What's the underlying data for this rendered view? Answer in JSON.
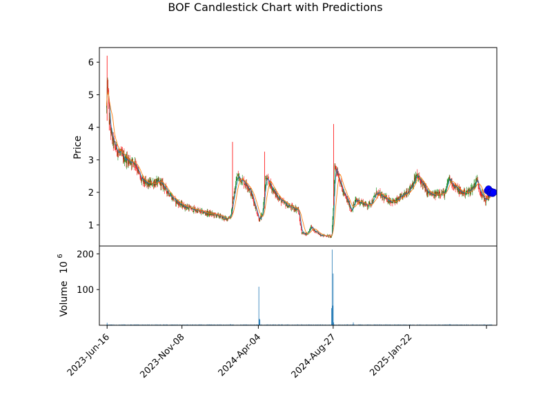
{
  "chart_data": {
    "type": "candlestick",
    "title": "BOF Candlestick Chart with Predictions",
    "price_panel": {
      "ylabel": "Price",
      "ylim": [
        0.35,
        6.45
      ],
      "yticks": [
        1,
        2,
        3,
        4,
        5,
        6
      ],
      "colors": {
        "up": "#008000",
        "down": "#ff0000",
        "ma_short": "#1f77b4",
        "ma_long": "#ff7f0e",
        "prediction": "#0000ff"
      },
      "price_path": [
        [
          "2023-06-15",
          4.6
        ],
        [
          "2023-06-17",
          5.4
        ],
        [
          "2023-06-20",
          4.2
        ],
        [
          "2023-06-25",
          3.7
        ],
        [
          "2023-07-01",
          3.4
        ],
        [
          "2023-07-10",
          3.2
        ],
        [
          "2023-07-20",
          3.05
        ],
        [
          "2023-08-01",
          2.95
        ],
        [
          "2023-08-10",
          2.9
        ],
        [
          "2023-08-20",
          2.4
        ],
        [
          "2023-09-01",
          2.25
        ],
        [
          "2023-09-15",
          2.3
        ],
        [
          "2023-09-28",
          2.3
        ],
        [
          "2023-10-10",
          2.05
        ],
        [
          "2023-10-25",
          1.75
        ],
        [
          "2023-11-08",
          1.6
        ],
        [
          "2023-11-25",
          1.5
        ],
        [
          "2023-12-15",
          1.4
        ],
        [
          "2024-01-05",
          1.33
        ],
        [
          "2024-01-20",
          1.27
        ],
        [
          "2024-02-01",
          1.18
        ],
        [
          "2024-02-10",
          1.25
        ],
        [
          "2024-02-17",
          1.95
        ],
        [
          "2024-02-23",
          2.5
        ],
        [
          "2024-03-05",
          2.35
        ],
        [
          "2024-03-15",
          2.2
        ],
        [
          "2024-03-25",
          1.8
        ],
        [
          "2024-04-01",
          1.4
        ],
        [
          "2024-04-06",
          1.15
        ],
        [
          "2024-04-12",
          1.3
        ],
        [
          "2024-04-18",
          2.4
        ],
        [
          "2024-04-25",
          2.3
        ],
        [
          "2024-05-05",
          2.0
        ],
        [
          "2024-05-20",
          1.7
        ],
        [
          "2024-06-05",
          1.55
        ],
        [
          "2024-06-20",
          1.48
        ],
        [
          "2024-06-27",
          0.75
        ],
        [
          "2024-07-08",
          0.72
        ],
        [
          "2024-07-15",
          0.95
        ],
        [
          "2024-07-22",
          0.8
        ],
        [
          "2024-08-05",
          0.68
        ],
        [
          "2024-08-24",
          0.65
        ],
        [
          "2024-08-27",
          1.5
        ],
        [
          "2024-08-30",
          2.8
        ],
        [
          "2024-09-05",
          2.6
        ],
        [
          "2024-09-15",
          2.0
        ],
        [
          "2024-09-25",
          1.7
        ],
        [
          "2024-10-01",
          1.45
        ],
        [
          "2024-10-10",
          1.75
        ],
        [
          "2024-10-20",
          1.7
        ],
        [
          "2024-11-01",
          1.6
        ],
        [
          "2024-11-10",
          1.7
        ],
        [
          "2024-11-20",
          2.0
        ],
        [
          "2024-12-01",
          1.85
        ],
        [
          "2024-12-15",
          1.75
        ],
        [
          "2024-12-25",
          1.7
        ],
        [
          "2025-01-10",
          1.9
        ],
        [
          "2025-01-22",
          2.1
        ],
        [
          "2025-02-05",
          2.5
        ],
        [
          "2025-02-15",
          2.3
        ],
        [
          "2025-02-25",
          2.0
        ],
        [
          "2025-03-10",
          1.9
        ],
        [
          "2025-03-20",
          2.0
        ],
        [
          "2025-04-01",
          1.95
        ],
        [
          "2025-04-08",
          2.45
        ],
        [
          "2025-04-18",
          2.2
        ],
        [
          "2025-05-01",
          2.0
        ],
        [
          "2025-05-15",
          2.0
        ],
        [
          "2025-05-25",
          2.15
        ],
        [
          "2025-06-01",
          2.4
        ],
        [
          "2025-06-10",
          1.95
        ],
        [
          "2025-06-18",
          1.75
        ],
        [
          "2025-06-25",
          1.9
        ],
        [
          "2025-07-01",
          2.0
        ]
      ],
      "spikes": [
        [
          "2023-06-16",
          6.2,
          4.2
        ],
        [
          "2024-02-14",
          3.55,
          1.3
        ],
        [
          "2024-04-16",
          3.25,
          1.5
        ],
        [
          "2024-08-28",
          4.1,
          1.6
        ]
      ],
      "predictions": [
        [
          "2025-06-22",
          2.05
        ],
        [
          "2025-06-24",
          2.1
        ],
        [
          "2025-06-26",
          2.0
        ],
        [
          "2025-06-28",
          1.98
        ],
        [
          "2025-06-30",
          2.02
        ],
        [
          "2025-07-02",
          1.97
        ],
        [
          "2025-07-04",
          2.0
        ]
      ]
    },
    "volume_panel": {
      "ylabel": "Volume",
      "scale_label": "10",
      "scale_exponent": "6",
      "yticks": [
        100,
        200
      ],
      "ylim": [
        0,
        222
      ],
      "bar_color": "#1f77b4",
      "base_volume": 1.5,
      "spikes": [
        [
          "2023-06-16",
          7
        ],
        [
          "2024-02-10",
          3
        ],
        [
          "2024-04-05",
          108
        ],
        [
          "2024-04-06",
          18
        ],
        [
          "2024-04-07",
          16
        ],
        [
          "2024-08-24",
          48
        ],
        [
          "2024-08-25",
          212
        ],
        [
          "2024-08-26",
          55
        ],
        [
          "2024-08-27",
          145
        ],
        [
          "2024-08-28",
          8
        ],
        [
          "2024-10-05",
          8
        ],
        [
          "2025-04-10",
          3
        ]
      ]
    },
    "x_axis": {
      "start": "2023-06-01",
      "end": "2025-07-10",
      "ticks": [
        {
          "date": "2023-06-16",
          "label": "2023-Jun-16"
        },
        {
          "date": "2023-11-08",
          "label": "2023-Nov-08"
        },
        {
          "date": "2024-04-04",
          "label": "2024-Apr-04"
        },
        {
          "date": "2024-08-27",
          "label": "2024-Aug-27"
        },
        {
          "date": "2025-01-22",
          "label": "2025-Jan-22"
        },
        {
          "date": "2025-06-20",
          "label": ""
        }
      ]
    }
  }
}
